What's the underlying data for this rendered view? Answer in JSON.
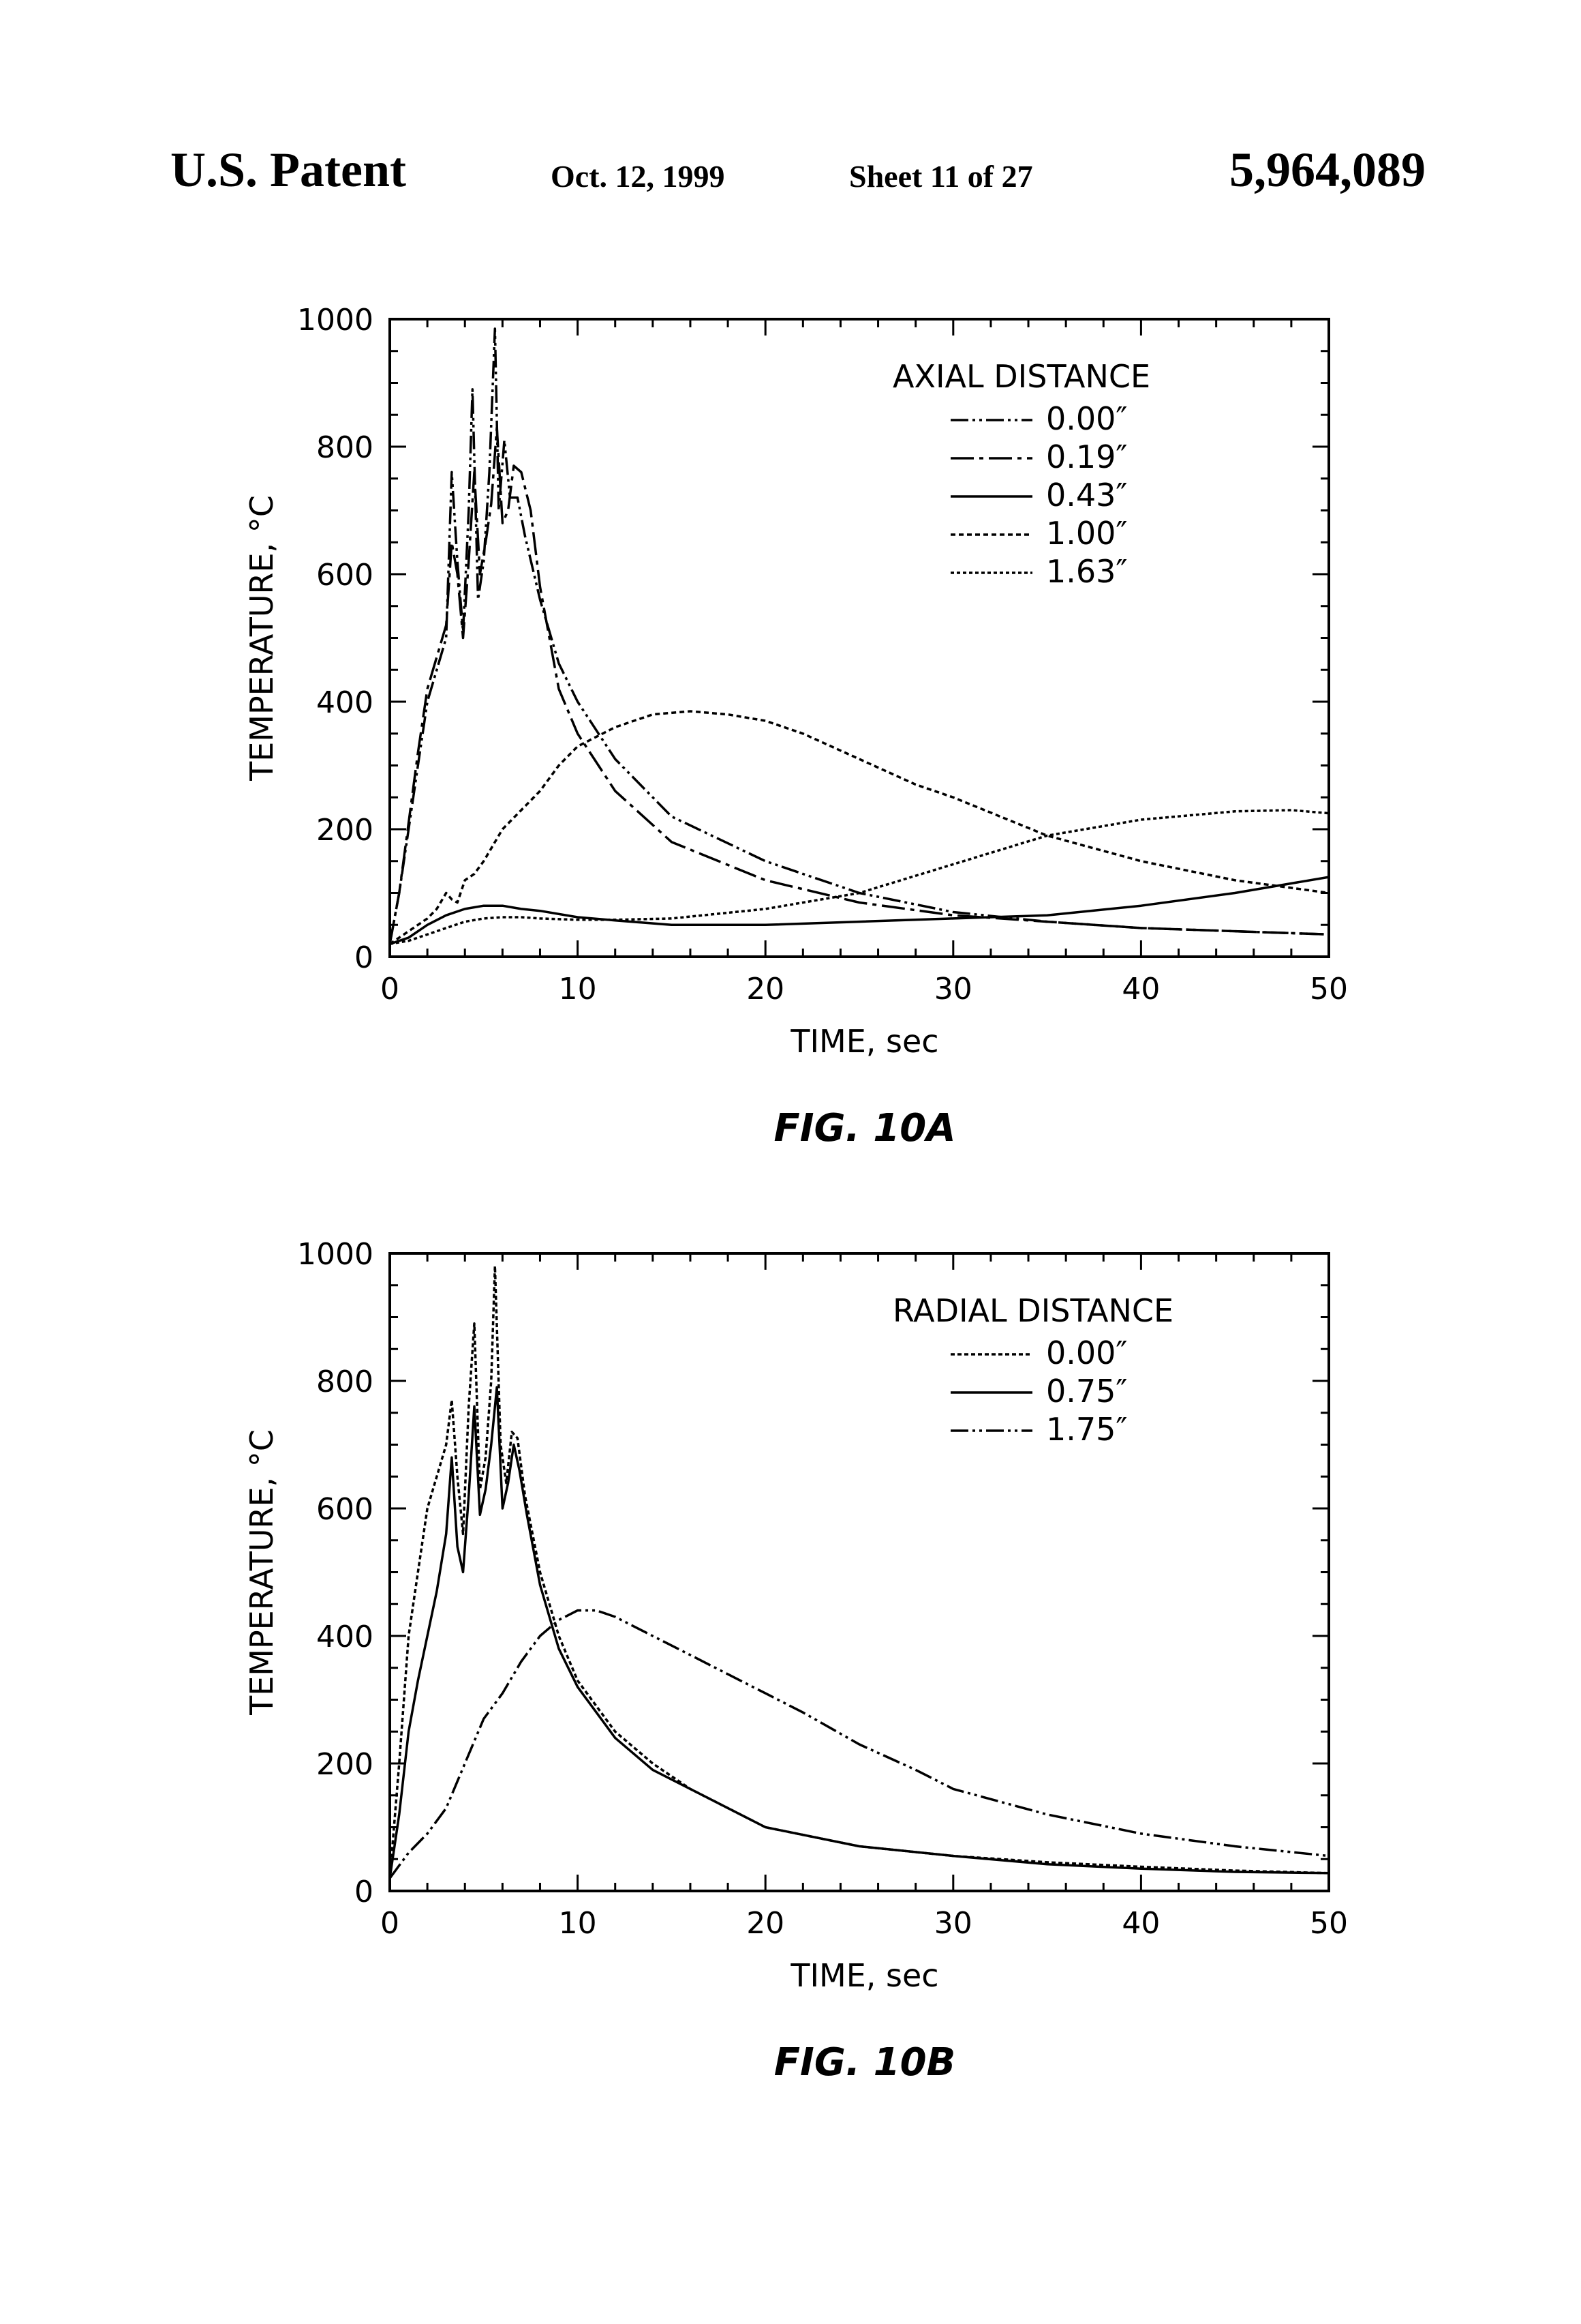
{
  "header": {
    "left": "U.S. Patent",
    "date": "Oct. 12, 1999",
    "sheet": "Sheet 11 of 27",
    "patent_number": "5,964,089"
  },
  "chart_data": [
    {
      "type": "line",
      "caption": "FIG. 10A",
      "xlabel": "TIME, sec",
      "ylabel": "TEMPERATURE, °C",
      "xlim": [
        0,
        50
      ],
      "ylim": [
        0,
        1000
      ],
      "x_ticks": [
        "0",
        "10",
        "20",
        "30",
        "40",
        "50"
      ],
      "y_ticks": [
        "0",
        "200",
        "400",
        "600",
        "800",
        "1000"
      ],
      "legend_title": "AXIAL DISTANCE",
      "legend_position": "top-right",
      "series": [
        {
          "name": "0.00″",
          "dash": "26,6,4,6,4,6",
          "x": [
            0,
            0.5,
            1,
            1.5,
            2,
            2.5,
            3,
            3.3,
            3.6,
            3.9,
            4.2,
            4.4,
            4.7,
            5.0,
            5.3,
            5.6,
            5.8,
            6.1,
            6.4,
            6.8,
            7.2,
            8,
            9,
            10,
            12,
            15,
            20,
            25,
            30,
            35,
            40,
            45,
            50
          ],
          "y": [
            20,
            100,
            200,
            300,
            400,
            450,
            500,
            760,
            620,
            510,
            700,
            890,
            560,
            620,
            760,
            985,
            700,
            810,
            720,
            720,
            660,
            560,
            460,
            400,
            310,
            220,
            150,
            100,
            70,
            55,
            45,
            40,
            35
          ]
        },
        {
          "name": "0.19″",
          "dash": "34,8,6,8",
          "x": [
            0,
            0.5,
            1,
            1.5,
            2,
            2.5,
            3,
            3.3,
            3.6,
            3.9,
            4.2,
            4.5,
            4.8,
            5.1,
            5.4,
            5.7,
            6.0,
            6.3,
            6.6,
            7,
            7.5,
            8,
            9,
            10,
            12,
            15,
            20,
            25,
            30,
            35,
            40,
            45,
            50
          ],
          "y": [
            20,
            100,
            210,
            320,
            420,
            470,
            520,
            650,
            600,
            500,
            620,
            760,
            600,
            650,
            710,
            830,
            680,
            700,
            770,
            760,
            700,
            580,
            420,
            350,
            260,
            180,
            120,
            85,
            65,
            55,
            45,
            40,
            35
          ]
        },
        {
          "name": "0.43″",
          "dash": "none",
          "x": [
            0,
            1,
            2,
            3,
            4,
            5,
            6,
            7,
            8,
            10,
            12,
            15,
            20,
            25,
            30,
            35,
            40,
            45,
            50
          ],
          "y": [
            20,
            30,
            50,
            65,
            75,
            80,
            80,
            75,
            72,
            62,
            57,
            50,
            50,
            55,
            60,
            65,
            80,
            100,
            125
          ]
        },
        {
          "name": "1.00″",
          "dash": "7,5",
          "x": [
            0,
            1,
            2,
            2.5,
            3,
            3.3,
            3.6,
            4,
            4.5,
            5,
            5.5,
            6,
            7,
            8,
            9,
            10,
            12,
            14,
            16,
            18,
            20,
            22,
            25,
            28,
            30,
            35,
            40,
            45,
            50
          ],
          "y": [
            20,
            40,
            60,
            75,
            100,
            90,
            85,
            120,
            130,
            150,
            175,
            200,
            230,
            260,
            300,
            330,
            360,
            380,
            385,
            380,
            370,
            350,
            310,
            270,
            250,
            190,
            150,
            120,
            100
          ]
        },
        {
          "name": "1.63″",
          "dash": "5,4",
          "x": [
            0,
            1,
            2,
            3,
            4,
            5,
            6,
            7,
            8,
            10,
            12,
            15,
            20,
            25,
            30,
            35,
            40,
            45,
            48,
            50
          ],
          "y": [
            20,
            25,
            35,
            45,
            55,
            60,
            62,
            62,
            60,
            58,
            58,
            60,
            75,
            100,
            145,
            190,
            215,
            228,
            230,
            225
          ]
        }
      ]
    },
    {
      "type": "line",
      "caption": "FIG. 10B",
      "xlabel": "TIME, sec",
      "ylabel": "TEMPERATURE, °C",
      "xlim": [
        0,
        50
      ],
      "ylim": [
        0,
        1000
      ],
      "x_ticks": [
        "0",
        "10",
        "20",
        "30",
        "40",
        "50"
      ],
      "y_ticks": [
        "0",
        "200",
        "400",
        "600",
        "800",
        "1000"
      ],
      "legend_title": "RADIAL DISTANCE",
      "legend_position": "top-right",
      "series": [
        {
          "name": "0.00″",
          "dash": "6,4",
          "x": [
            0,
            0.5,
            1,
            1.5,
            2,
            2.5,
            3,
            3.3,
            3.6,
            3.9,
            4.2,
            4.5,
            4.8,
            5.1,
            5.4,
            5.6,
            5.9,
            6.2,
            6.5,
            6.8,
            7.2,
            8,
            9,
            10,
            12,
            14,
            16,
            20,
            25,
            30,
            35,
            40,
            45,
            50
          ],
          "y": [
            20,
            200,
            400,
            500,
            600,
            650,
            700,
            770,
            650,
            560,
            760,
            890,
            630,
            680,
            800,
            980,
            700,
            640,
            720,
            710,
            620,
            500,
            400,
            330,
            250,
            200,
            160,
            100,
            70,
            55,
            45,
            38,
            32,
            28
          ]
        },
        {
          "name": "0.75″",
          "dash": "none",
          "x": [
            0,
            0.5,
            1,
            1.5,
            2,
            2.5,
            3,
            3.3,
            3.6,
            3.9,
            4.2,
            4.5,
            4.8,
            5.1,
            5.4,
            5.7,
            6.0,
            6.3,
            6.6,
            6.9,
            7.3,
            8,
            9,
            10,
            12,
            14,
            16,
            20,
            25,
            30,
            35,
            40,
            45,
            50
          ],
          "y": [
            20,
            120,
            250,
            330,
            400,
            470,
            560,
            680,
            540,
            500,
            620,
            760,
            590,
            630,
            700,
            790,
            600,
            640,
            700,
            660,
            590,
            480,
            380,
            320,
            240,
            190,
            160,
            100,
            70,
            55,
            42,
            35,
            30,
            28
          ]
        },
        {
          "name": "1.75″",
          "dash": "26,6,4,6,4,6",
          "x": [
            0,
            1,
            2,
            3,
            4,
            5,
            6,
            7,
            8,
            9,
            10,
            11,
            12,
            14,
            16,
            18,
            20,
            22,
            25,
            28,
            30,
            35,
            40,
            45,
            50
          ],
          "y": [
            20,
            60,
            90,
            130,
            200,
            270,
            310,
            360,
            400,
            425,
            440,
            440,
            430,
            400,
            370,
            340,
            310,
            280,
            230,
            190,
            160,
            120,
            90,
            70,
            55
          ]
        }
      ]
    }
  ]
}
